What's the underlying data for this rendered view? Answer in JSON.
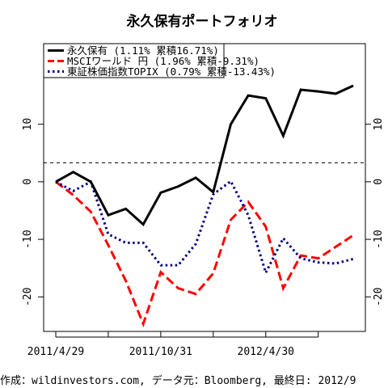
{
  "chart_data": {
    "type": "line",
    "title": "永久保有ポートフォリオ",
    "x": [
      "2011/4/29",
      "2011/5/31",
      "2011/6/30",
      "2011/7/29",
      "2011/8/31",
      "2011/9/30",
      "2011/10/31",
      "2011/11/30",
      "2011/12/30",
      "2012/1/31",
      "2012/2/29",
      "2012/3/30",
      "2012/4/30",
      "2012/5/31",
      "2012/6/29",
      "2012/7/31",
      "2012/8/31",
      "2012/9/28"
    ],
    "x_ticks": [
      {
        "label": "2011/4/29",
        "index": 0
      },
      {
        "label": "2011/10/31",
        "index": 6
      },
      {
        "label": "2012/4/30",
        "index": 12
      }
    ],
    "ylim": [
      -26,
      24
    ],
    "y_ticks": [
      -20,
      -10,
      0,
      10
    ],
    "zero_line": "dashed",
    "series": [
      {
        "name": "永久保有 (1.11% 累積16.71%)",
        "color": "#000000",
        "style": "solid",
        "values": [
          0,
          1.7,
          0,
          -5.8,
          -4.7,
          -7.4,
          -1.9,
          -0.8,
          0.7,
          -1.8,
          10,
          15,
          14.5,
          8,
          16,
          15.7,
          15.3,
          16.7
        ]
      },
      {
        "name": "MSCIワールド 円 (1.96% 累積-9.31%)",
        "color": "#ff0000",
        "style": "dashed",
        "values": [
          0,
          -2.3,
          -5.2,
          -11,
          -17.2,
          -24.7,
          -15.7,
          -18.5,
          -19.5,
          -15.9,
          -6.6,
          -3.5,
          -7.8,
          -18.5,
          -12.8,
          -13.3,
          -11.3,
          -9.3
        ]
      },
      {
        "name": "東証株価指数TOPIX (0.79% 累積-13.43%)",
        "color": "#000080",
        "style": "dotted",
        "values": [
          0,
          -1.6,
          0,
          -9.1,
          -10.6,
          -10.6,
          -14.5,
          -14.5,
          -10.8,
          -2.2,
          0.1,
          -5.8,
          -15.8,
          -9.8,
          -13.3,
          -14,
          -14.2,
          -13.4
        ]
      }
    ],
    "legend_position": "top-left",
    "footer": "作成：wildinvestors.com, データ元：Bloomberg, 最終日: 2012/9"
  }
}
